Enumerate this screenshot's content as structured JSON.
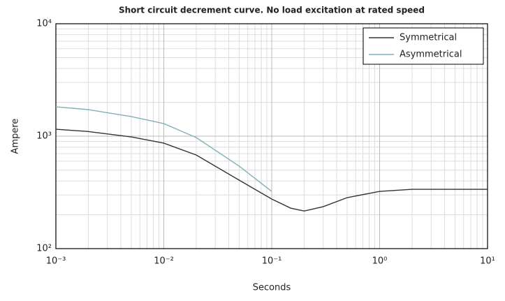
{
  "chart_data": {
    "type": "line",
    "title": "Short circuit decrement curve. No load excitation at rated speed",
    "xlabel": "Seconds",
    "ylabel": "Ampere",
    "x": [
      0.001,
      0.002,
      0.005,
      0.01,
      0.02,
      0.05,
      0.1,
      0.15,
      0.2,
      0.3,
      0.5,
      1,
      2,
      5,
      10
    ],
    "series": [
      {
        "name": "Symmetrical",
        "color": "#333333",
        "values": [
          1153,
          1100,
          985,
          867,
          680,
          406,
          276,
          229,
          216,
          236,
          284,
          323,
          337,
          337,
          337
        ]
      },
      {
        "name": "Asymmetrical",
        "color": "#7fb2b8",
        "values": [
          1824,
          1722,
          1493,
          1294,
          972,
          541,
          323,
          null,
          null,
          null,
          null,
          null,
          null,
          null,
          null
        ]
      }
    ],
    "xscale": "log",
    "yscale": "log",
    "xlim": [
      0.001,
      10
    ],
    "ylim": [
      100,
      10000
    ],
    "xticks": [
      {
        "value": 0.001,
        "label": "10⁻³"
      },
      {
        "value": 0.01,
        "label": "10⁻²"
      },
      {
        "value": 0.1,
        "label": "10⁻¹"
      },
      {
        "value": 1,
        "label": "10⁰"
      },
      {
        "value": 10,
        "label": "10¹"
      }
    ],
    "yticks": [
      {
        "value": 100,
        "label": "10²"
      },
      {
        "value": 1000,
        "label": "10³"
      },
      {
        "value": 10000,
        "label": "10⁴"
      }
    ],
    "grid": true,
    "minor_grid": true,
    "legend": "upper right"
  }
}
